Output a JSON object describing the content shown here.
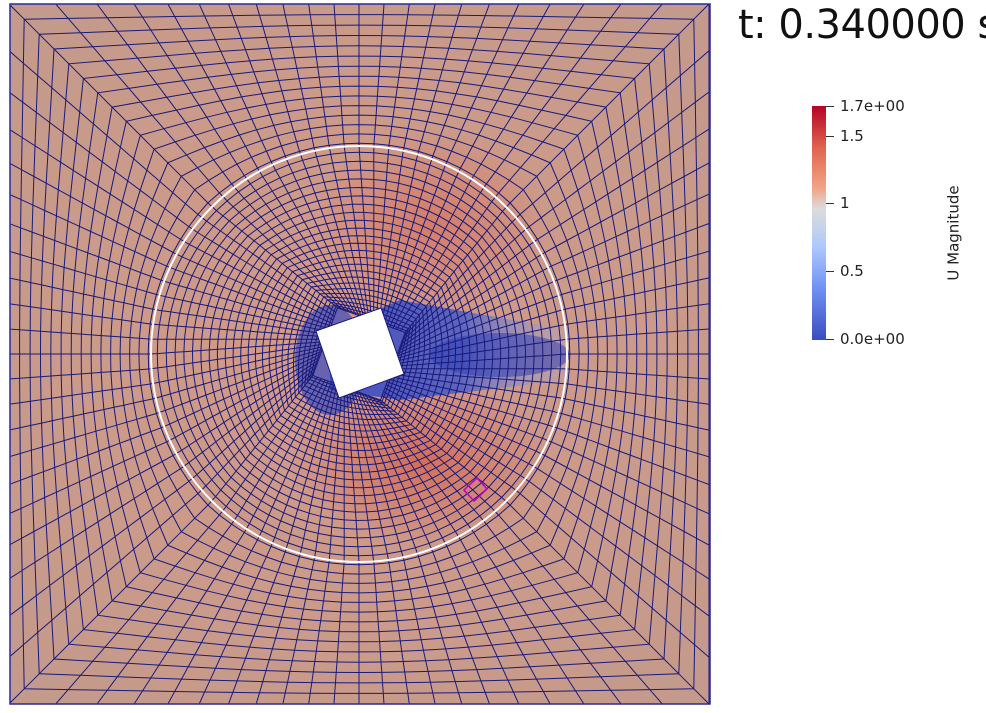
{
  "time_readout": "t: 0.340000 s",
  "legend": {
    "title": "U Magnitude",
    "max_label": "1.7e+00",
    "min_label": "0.0e+00",
    "ticks": [
      "1.5",
      "1",
      "0.5"
    ],
    "range": [
      0.0,
      1.7
    ],
    "colormap": "cool-to-warm",
    "colors": {
      "high": "#b40426",
      "mid": "#dcdcdc",
      "low": "#3b4cc0"
    }
  },
  "scene": {
    "mesh_color": "#1a1a7a",
    "domain_border_color": "#2b2b9a",
    "circle_color": "#ffffff",
    "probe_marker_color": "#c000c0",
    "obstacle_color": "#ffffff",
    "ambient_color": "#c89a8a"
  }
}
